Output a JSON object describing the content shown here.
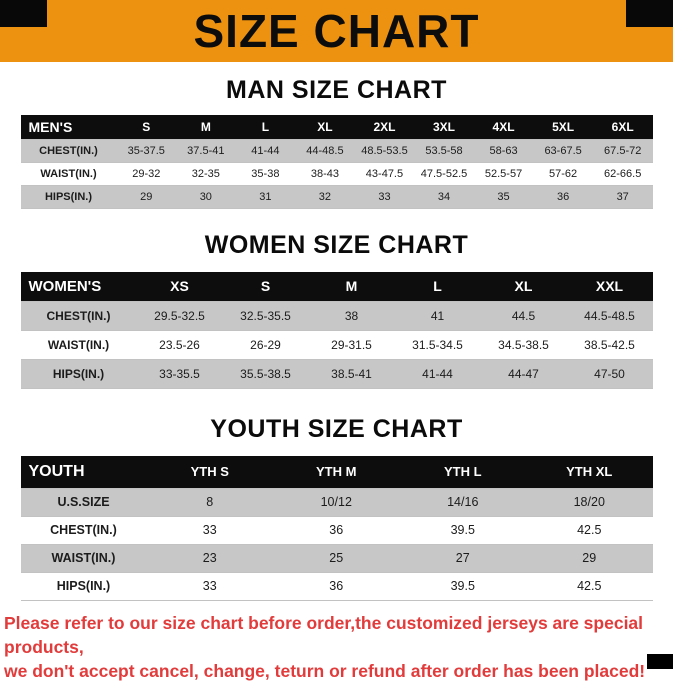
{
  "banner": {
    "title": "SIZE CHART",
    "bg_color": "#ED9210",
    "corner_color": "#080808"
  },
  "sections": [
    {
      "id": "men",
      "heading": "MAN SIZE CHART",
      "table": {
        "header": [
          "MEN'S",
          "S",
          "M",
          "L",
          "XL",
          "2XL",
          "3XL",
          "4XL",
          "5XL",
          "6XL"
        ],
        "rows": [
          {
            "label": "CHEST(IN.)",
            "values": [
              "35-37.5",
              "37.5-41",
              "41-44",
              "44-48.5",
              "48.5-53.5",
              "53.5-58",
              "58-63",
              "63-67.5",
              "67.5-72"
            ]
          },
          {
            "label": "WAIST(IN.)",
            "values": [
              "29-32",
              "32-35",
              "35-38",
              "38-43",
              "43-47.5",
              "47.5-52.5",
              "52.5-57",
              "57-62",
              "62-66.5"
            ]
          },
          {
            "label": "HIPS(IN.)",
            "values": [
              "29",
              "30",
              "31",
              "32",
              "33",
              "34",
              "35",
              "36",
              "37"
            ]
          }
        ]
      }
    },
    {
      "id": "women",
      "heading": "WOMEN SIZE CHART",
      "table": {
        "header": [
          "WOMEN'S",
          "XS",
          "S",
          "M",
          "L",
          "XL",
          "XXL"
        ],
        "rows": [
          {
            "label": "CHEST(IN.)",
            "values": [
              "29.5-32.5",
              "32.5-35.5",
              "38",
              "41",
              "44.5",
              "44.5-48.5"
            ]
          },
          {
            "label": "WAIST(IN.)",
            "values": [
              "23.5-26",
              "26-29",
              "29-31.5",
              "31.5-34.5",
              "34.5-38.5",
              "38.5-42.5"
            ]
          },
          {
            "label": "HIPS(IN.)",
            "values": [
              "33-35.5",
              "35.5-38.5",
              "38.5-41",
              "41-44",
              "44-47",
              "47-50"
            ]
          }
        ]
      }
    },
    {
      "id": "youth",
      "heading": "YOUTH SIZE CHART",
      "table": {
        "header": [
          "YOUTH",
          "YTH S",
          "YTH M",
          "YTH L",
          "YTH XL"
        ],
        "rows": [
          {
            "label": "U.S.SIZE",
            "values": [
              "8",
              "10/12",
              "14/16",
              "18/20"
            ]
          },
          {
            "label": "CHEST(IN.)",
            "values": [
              "33",
              "36",
              "39.5",
              "42.5"
            ]
          },
          {
            "label": "WAIST(IN.)",
            "values": [
              "23",
              "25",
              "27",
              "29"
            ]
          },
          {
            "label": "HIPS(IN.)",
            "values": [
              "33",
              "36",
              "39.5",
              "42.5"
            ]
          }
        ]
      }
    }
  ],
  "footer": {
    "line1": "Please refer to our size chart before order,the customized jerseys are special products,",
    "line2": "we don't accept cancel, change, teturn or refund after order has been placed!",
    "text_color": "#E23B3B"
  }
}
